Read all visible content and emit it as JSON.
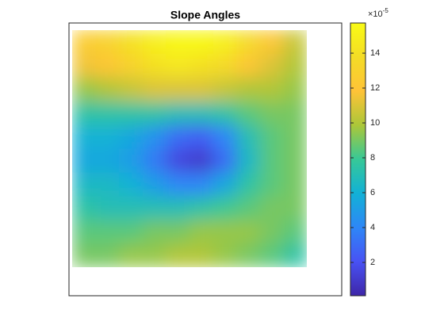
{
  "chart_data": {
    "type": "heatmap",
    "title": "Slope Angles",
    "colormap": "parula",
    "values": [
      [
        12.5,
        13,
        14,
        15,
        15.5,
        15.5,
        15,
        13.5,
        12,
        10.5
      ],
      [
        11.5,
        12,
        13,
        14,
        14.5,
        14,
        13.5,
        12,
        11,
        10
      ],
      [
        9.5,
        10,
        10.5,
        11,
        11,
        11,
        10.5,
        10,
        10,
        9.5
      ],
      [
        7.5,
        7.5,
        7.5,
        7.5,
        7,
        7,
        7.5,
        8.5,
        9,
        9
      ],
      [
        6,
        6,
        5.5,
        4.5,
        3,
        2.5,
        4,
        7,
        8.5,
        9
      ],
      [
        5.5,
        5.5,
        5,
        3.5,
        1.5,
        1,
        3,
        6.5,
        8.5,
        9
      ],
      [
        6.5,
        6.5,
        6,
        5,
        4,
        4,
        5.5,
        7.5,
        8.5,
        9
      ],
      [
        7.5,
        7,
        7,
        7,
        7,
        7.5,
        8,
        8.5,
        9,
        9
      ],
      [
        8.5,
        8.5,
        8.5,
        9,
        9,
        9.5,
        9.5,
        9.5,
        9,
        8.5
      ],
      [
        9,
        9,
        9.5,
        9.5,
        10,
        10,
        9.5,
        9,
        8.5,
        7.5
      ]
    ],
    "clim": [
      0.09,
      15.73
    ],
    "cticks": [
      2,
      4,
      6,
      8,
      10,
      12,
      14
    ],
    "colorbar_multiplier": {
      "base": "×10",
      "exponent": "-5"
    }
  }
}
